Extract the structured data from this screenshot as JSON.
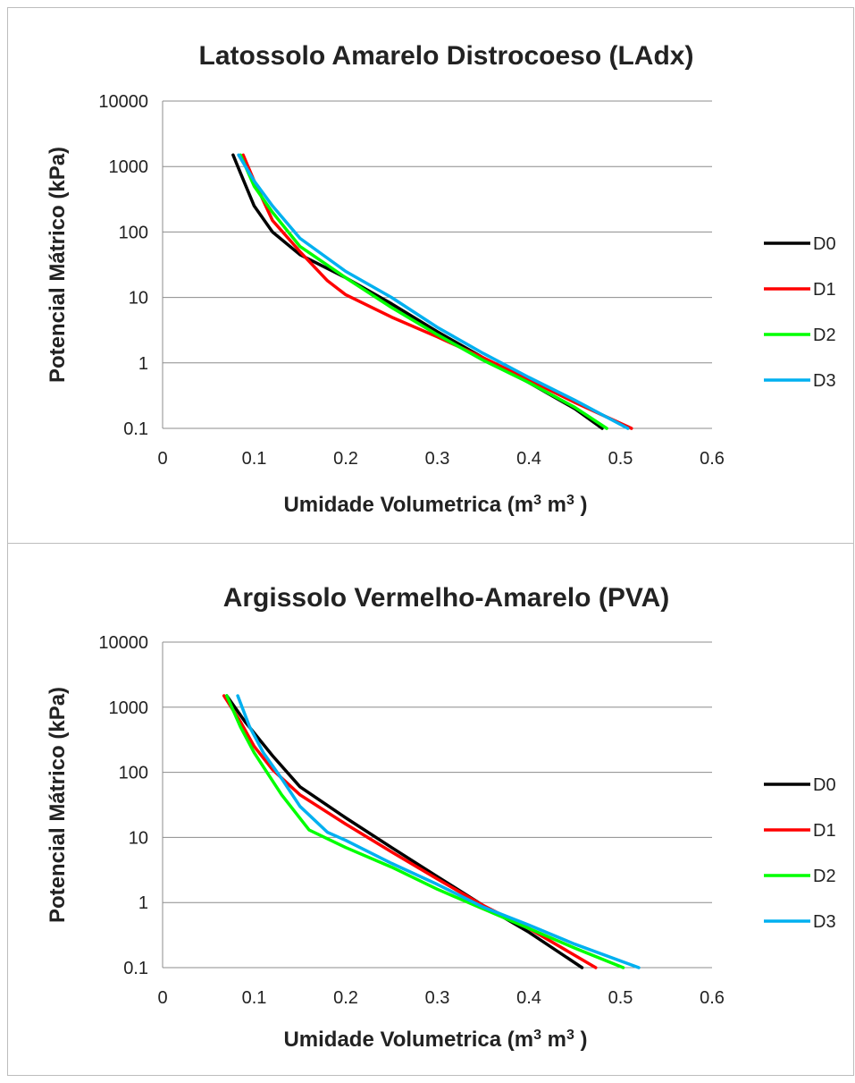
{
  "chart_data": [
    {
      "type": "line",
      "title": "Latossolo Amarelo Distrocoeso (LAdx)",
      "xlabel_main": "Umidade Volumetrica (m",
      "xlabel_sup1": "3",
      "xlabel_mid": " m",
      "xlabel_sup2": "3",
      "xlabel_end": " )",
      "ylabel": "Potencial Mátrico (kPa)",
      "xlim": [
        0,
        0.6
      ],
      "ylim": [
        0.1,
        10000
      ],
      "yscale": "log",
      "grid": "horizontal",
      "legend_placement": "right",
      "x_ticks": [
        "0",
        "0.1",
        "0.2",
        "0.3",
        "0.4",
        "0.5",
        "0.6"
      ],
      "y_ticks": [
        "10000",
        "1000",
        "100",
        "10",
        "1",
        "0.1"
      ],
      "series": [
        {
          "name": "D0",
          "color": "#000000",
          "points": [
            [
              0.077,
              1500
            ],
            [
              0.085,
              800
            ],
            [
              0.1,
              250
            ],
            [
              0.12,
              100
            ],
            [
              0.15,
              45
            ],
            [
              0.2,
              20
            ],
            [
              0.25,
              8
            ],
            [
              0.3,
              3
            ],
            [
              0.35,
              1.2
            ],
            [
              0.4,
              0.5
            ],
            [
              0.45,
              0.2
            ],
            [
              0.48,
              0.1
            ]
          ]
        },
        {
          "name": "D1",
          "color": "#ff0000",
          "points": [
            [
              0.088,
              1500
            ],
            [
              0.1,
              600
            ],
            [
              0.12,
              150
            ],
            [
              0.15,
              50
            ],
            [
              0.18,
              18
            ],
            [
              0.2,
              11
            ],
            [
              0.25,
              5
            ],
            [
              0.3,
              2.5
            ],
            [
              0.35,
              1.2
            ],
            [
              0.4,
              0.55
            ],
            [
              0.45,
              0.25
            ],
            [
              0.512,
              0.1
            ]
          ]
        },
        {
          "name": "D2",
          "color": "#00ff00",
          "points": [
            [
              0.085,
              1500
            ],
            [
              0.1,
              500
            ],
            [
              0.12,
              200
            ],
            [
              0.15,
              60
            ],
            [
              0.2,
              20
            ],
            [
              0.25,
              7
            ],
            [
              0.3,
              2.7
            ],
            [
              0.35,
              1.1
            ],
            [
              0.4,
              0.5
            ],
            [
              0.45,
              0.21
            ],
            [
              0.485,
              0.1
            ]
          ]
        },
        {
          "name": "D3",
          "color": "#00b0f0",
          "points": [
            [
              0.083,
              1500
            ],
            [
              0.1,
              600
            ],
            [
              0.12,
              250
            ],
            [
              0.15,
              80
            ],
            [
              0.2,
              25
            ],
            [
              0.25,
              10
            ],
            [
              0.3,
              3.5
            ],
            [
              0.35,
              1.4
            ],
            [
              0.4,
              0.6
            ],
            [
              0.45,
              0.27
            ],
            [
              0.508,
              0.1
            ]
          ]
        }
      ]
    },
    {
      "type": "line",
      "title": "Argissolo Vermelho-Amarelo (PVA)",
      "xlabel_main": "Umidade Volumetrica (m",
      "xlabel_sup1": "3",
      "xlabel_mid": " m",
      "xlabel_sup2": "3",
      "xlabel_end": " )",
      "ylabel": "Potencial Mátrico (kPa)",
      "xlim": [
        0,
        0.6
      ],
      "ylim": [
        0.1,
        10000
      ],
      "yscale": "log",
      "grid": "horizontal",
      "legend_placement": "right",
      "x_ticks": [
        "0",
        "0.1",
        "0.2",
        "0.3",
        "0.4",
        "0.5",
        "0.6"
      ],
      "y_ticks": [
        "10000",
        "1000",
        "100",
        "10",
        "1",
        "0.1"
      ],
      "series": [
        {
          "name": "D0",
          "color": "#000000",
          "points": [
            [
              0.07,
              1500
            ],
            [
              0.09,
              600
            ],
            [
              0.12,
              180
            ],
            [
              0.15,
              60
            ],
            [
              0.2,
              20
            ],
            [
              0.25,
              7
            ],
            [
              0.3,
              2.5
            ],
            [
              0.35,
              0.9
            ],
            [
              0.4,
              0.35
            ],
            [
              0.458,
              0.1
            ]
          ]
        },
        {
          "name": "D1",
          "color": "#ff0000",
          "points": [
            [
              0.067,
              1500
            ],
            [
              0.085,
              600
            ],
            [
              0.1,
              250
            ],
            [
              0.12,
              110
            ],
            [
              0.15,
              45
            ],
            [
              0.2,
              16
            ],
            [
              0.25,
              6
            ],
            [
              0.3,
              2.3
            ],
            [
              0.35,
              0.9
            ],
            [
              0.4,
              0.4
            ],
            [
              0.473,
              0.1
            ]
          ]
        },
        {
          "name": "D2",
          "color": "#00ff00",
          "points": [
            [
              0.07,
              1500
            ],
            [
              0.085,
              500
            ],
            [
              0.1,
              200
            ],
            [
              0.13,
              45
            ],
            [
              0.16,
              13
            ],
            [
              0.2,
              7
            ],
            [
              0.25,
              3.5
            ],
            [
              0.3,
              1.6
            ],
            [
              0.35,
              0.8
            ],
            [
              0.4,
              0.4
            ],
            [
              0.45,
              0.2
            ],
            [
              0.503,
              0.1
            ]
          ]
        },
        {
          "name": "D3",
          "color": "#00b0f0",
          "points": [
            [
              0.082,
              1500
            ],
            [
              0.095,
              500
            ],
            [
              0.11,
              200
            ],
            [
              0.13,
              80
            ],
            [
              0.15,
              30
            ],
            [
              0.18,
              12
            ],
            [
              0.2,
              9
            ],
            [
              0.25,
              4
            ],
            [
              0.3,
              1.9
            ],
            [
              0.35,
              0.85
            ],
            [
              0.4,
              0.45
            ],
            [
              0.45,
              0.23
            ],
            [
              0.52,
              0.1
            ]
          ]
        }
      ]
    }
  ]
}
